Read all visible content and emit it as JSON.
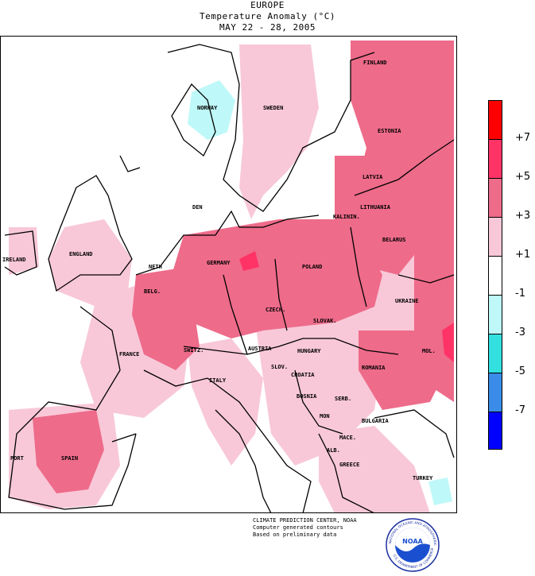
{
  "header": {
    "region": "EUROPE",
    "title": "Temperature Anomaly (°C)",
    "dates": "MAY 22 - 28, 2005"
  },
  "legend": {
    "levels": [
      {
        "color": "#ff0000"
      },
      {
        "color": "#ff3366",
        "label": "+7"
      },
      {
        "color": "#ee6b8a",
        "label": "+5"
      },
      {
        "color": "#f8c8d8",
        "label": "+3"
      },
      {
        "color": "#ffffff",
        "label": "+1"
      },
      {
        "color": "#bff8f8",
        "label": "-1"
      },
      {
        "color": "#33e0e0",
        "label": "-3"
      },
      {
        "color": "#3a8ce8",
        "label": "-5"
      },
      {
        "color": "#0000ff",
        "label": "-7"
      }
    ]
  },
  "map": {
    "labels": [
      {
        "id": "norway",
        "text": "NORWAY"
      },
      {
        "id": "sweden",
        "text": "SWEDEN"
      },
      {
        "id": "finland",
        "text": "FINLAND"
      },
      {
        "id": "estonia",
        "text": "ESTONIA"
      },
      {
        "id": "latvia",
        "text": "LATVIA"
      },
      {
        "id": "lithuania",
        "text": "LITHUANIA"
      },
      {
        "id": "kalinin",
        "text": "KALININ."
      },
      {
        "id": "belarus",
        "text": "BELARUS"
      },
      {
        "id": "den",
        "text": "DEN"
      },
      {
        "id": "ireland",
        "text": "IRELAND"
      },
      {
        "id": "england",
        "text": "ENGLAND"
      },
      {
        "id": "neth",
        "text": "NETH"
      },
      {
        "id": "belg",
        "text": "BELG."
      },
      {
        "id": "germany",
        "text": "GERMANY"
      },
      {
        "id": "poland",
        "text": "POLAND"
      },
      {
        "id": "ukraine",
        "text": "UKRAINE"
      },
      {
        "id": "czech",
        "text": "CZECH."
      },
      {
        "id": "slovak",
        "text": "SLOVAK."
      },
      {
        "id": "austria",
        "text": "AUSTRIA"
      },
      {
        "id": "hungary",
        "text": "HUNGARY"
      },
      {
        "id": "mol",
        "text": "MOL."
      },
      {
        "id": "romania",
        "text": "ROMANIA"
      },
      {
        "id": "switz",
        "text": "SWITZ."
      },
      {
        "id": "france",
        "text": "FRANCE"
      },
      {
        "id": "slov",
        "text": "SLOV."
      },
      {
        "id": "croatia",
        "text": "CROATIA"
      },
      {
        "id": "italy",
        "text": "ITALY"
      },
      {
        "id": "bosnia",
        "text": "BOSNIA"
      },
      {
        "id": "serb",
        "text": "SERB."
      },
      {
        "id": "mon",
        "text": "MON"
      },
      {
        "id": "bulgaria",
        "text": "BULGARIA"
      },
      {
        "id": "mace",
        "text": "MACE."
      },
      {
        "id": "alb",
        "text": "ALB."
      },
      {
        "id": "greece",
        "text": "GREECE"
      },
      {
        "id": "turkey",
        "text": "TURKEY"
      },
      {
        "id": "port",
        "text": "PORT"
      },
      {
        "id": "spain",
        "text": "SPAIN"
      }
    ]
  },
  "credits": {
    "line1": "CLIMATE PREDICTION CENTER, NOAA",
    "line2": "Computer generated contours",
    "line3": "Based on preliminary data"
  },
  "logo": {
    "text": "NOAA",
    "ring_top": "NATIONAL OCEANIC AND ATMOSPHERIC ADMINISTRATION",
    "ring_bottom": "U.S. DEPARTMENT OF COMMERCE"
  }
}
